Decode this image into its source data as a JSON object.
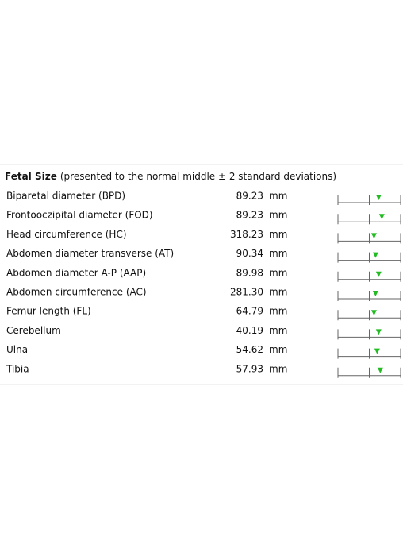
{
  "header": {
    "title": "Fetal Size",
    "subtitle": "(presented to the normal middle ± 2 standard deviations)"
  },
  "table": {
    "unit": "mm",
    "gauge": {
      "xlim": [
        -2,
        2
      ],
      "ticks": [
        -2,
        0,
        2
      ]
    },
    "rows": [
      {
        "name": "Biparetal diameter (BPD)",
        "value": "89.23",
        "z": 0.6
      },
      {
        "name": "Frontooczipital diameter (FOD)",
        "value": "89.23",
        "z": 0.8
      },
      {
        "name": "Head circumference  (HC)",
        "value": "318.23",
        "z": 0.3
      },
      {
        "name": "Abdomen diameter transverse (AT)",
        "value": "90.34",
        "z": 0.4
      },
      {
        "name": "Abdomen diameter A-P (AAP)",
        "value": "89.98",
        "z": 0.6
      },
      {
        "name": "Abdomen circumference (AC)",
        "value": "281.30",
        "z": 0.4
      },
      {
        "name": "Femur length (FL)",
        "value": "64.79",
        "z": 0.3
      },
      {
        "name": "Cerebellum",
        "value": "40.19",
        "z": 0.6
      },
      {
        "name": "Ulna",
        "value": "54.62",
        "z": 0.5
      },
      {
        "name": "Tibia",
        "value": "57.93",
        "z": 0.7
      }
    ]
  }
}
